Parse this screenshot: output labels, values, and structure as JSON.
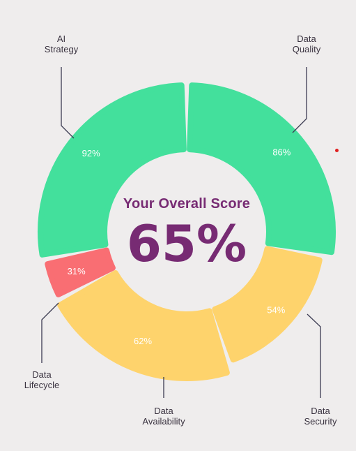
{
  "chart_data": {
    "type": "donut",
    "title": "Your Overall Score",
    "overall_score": "65%",
    "segments": [
      {
        "id": "ai-strategy",
        "label_lines": [
          "AI",
          "Strategy"
        ],
        "value": 92,
        "value_label": "92%",
        "color": "#43e09c"
      },
      {
        "id": "data-quality",
        "label_lines": [
          "Data",
          "Quality"
        ],
        "value": 86,
        "value_label": "86%",
        "color": "#43e09c"
      },
      {
        "id": "data-security",
        "label_lines": [
          "Data",
          "Security"
        ],
        "value": 54,
        "value_label": "54%",
        "color": "#fed36c"
      },
      {
        "id": "data-availability",
        "label_lines": [
          "Data",
          "Availability"
        ],
        "value": 62,
        "value_label": "62%",
        "color": "#fed36c"
      },
      {
        "id": "data-lifecycle",
        "label_lines": [
          "Data",
          "Lifecycle"
        ],
        "value": 31,
        "value_label": "31%",
        "color": "#f96e73"
      }
    ]
  }
}
